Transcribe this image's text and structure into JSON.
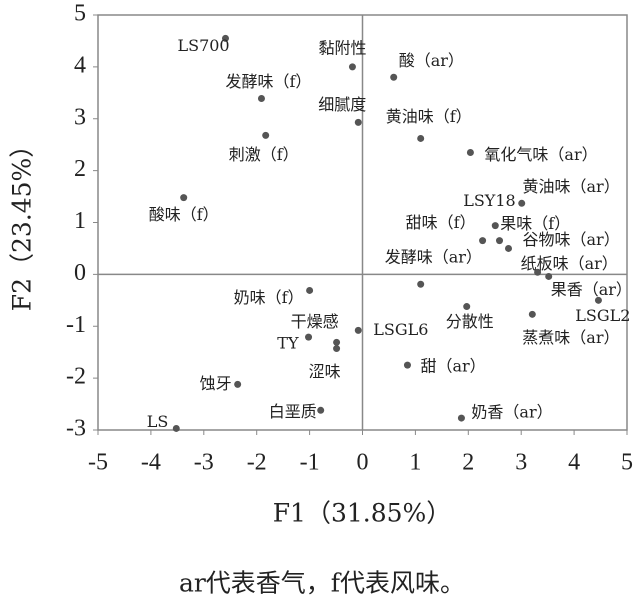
{
  "chart_data": {
    "type": "scatter",
    "xlabel": "F1（31.85%）",
    "ylabel": "F2（23.45%）",
    "caption": "ar代表香气，f代表风味。",
    "labels": [
      "LS700",
      "黏附性",
      "酸（ar）",
      "发酵味（f）",
      "细腻度",
      "黄油味（f）",
      "刺激（f）",
      "氧化气味（ar）",
      "酸味（f）",
      "LSY18",
      "黄油味（ar）",
      "甜味（f）",
      "果味（f）",
      "谷物味（ar）",
      "纸板味（ar）",
      "发酵味（ar）",
      "果香（ar）",
      "LSGL2",
      "蒸煮味（ar）",
      "分散性",
      "奶味（f）",
      "TY",
      "干燥感",
      "涩味",
      "LSGL6",
      "甜（ar）",
      "蚀牙",
      "白垩质",
      "奶香（ar）",
      "LS"
    ],
    "x": [
      -2.59,
      -0.19,
      0.59,
      -1.91,
      -0.08,
      1.1,
      -1.83,
      2.04,
      -3.38,
      3.01,
      2.59,
      2.27,
      2.51,
      2.76,
      3.31,
      1.1,
      3.52,
      4.46,
      3.21,
      1.97,
      -1.0,
      -1.02,
      -0.49,
      -0.49,
      -0.08,
      0.85,
      -2.36,
      -0.79,
      1.87,
      -3.52
    ],
    "values": [
      4.55,
      4.0,
      3.8,
      3.39,
      2.93,
      2.62,
      2.68,
      2.35,
      1.48,
      1.37,
      0.65,
      0.65,
      0.94,
      0.5,
      0.04,
      -0.19,
      -0.04,
      -0.5,
      -0.77,
      -0.62,
      -0.31,
      -1.21,
      -1.31,
      -1.43,
      -1.08,
      -1.75,
      -2.12,
      -2.62,
      -2.77,
      -2.97
    ],
    "color": "#555555",
    "xlim": [
      -5,
      5
    ],
    "xticks": [
      -5,
      -4,
      -3,
      -2,
      -1,
      0,
      1,
      2,
      3,
      4,
      5
    ],
    "ylim": [
      -3,
      5
    ],
    "yticks": [
      -3,
      -2,
      -1,
      0,
      1,
      2,
      3,
      4,
      5
    ],
    "grid": false
  }
}
